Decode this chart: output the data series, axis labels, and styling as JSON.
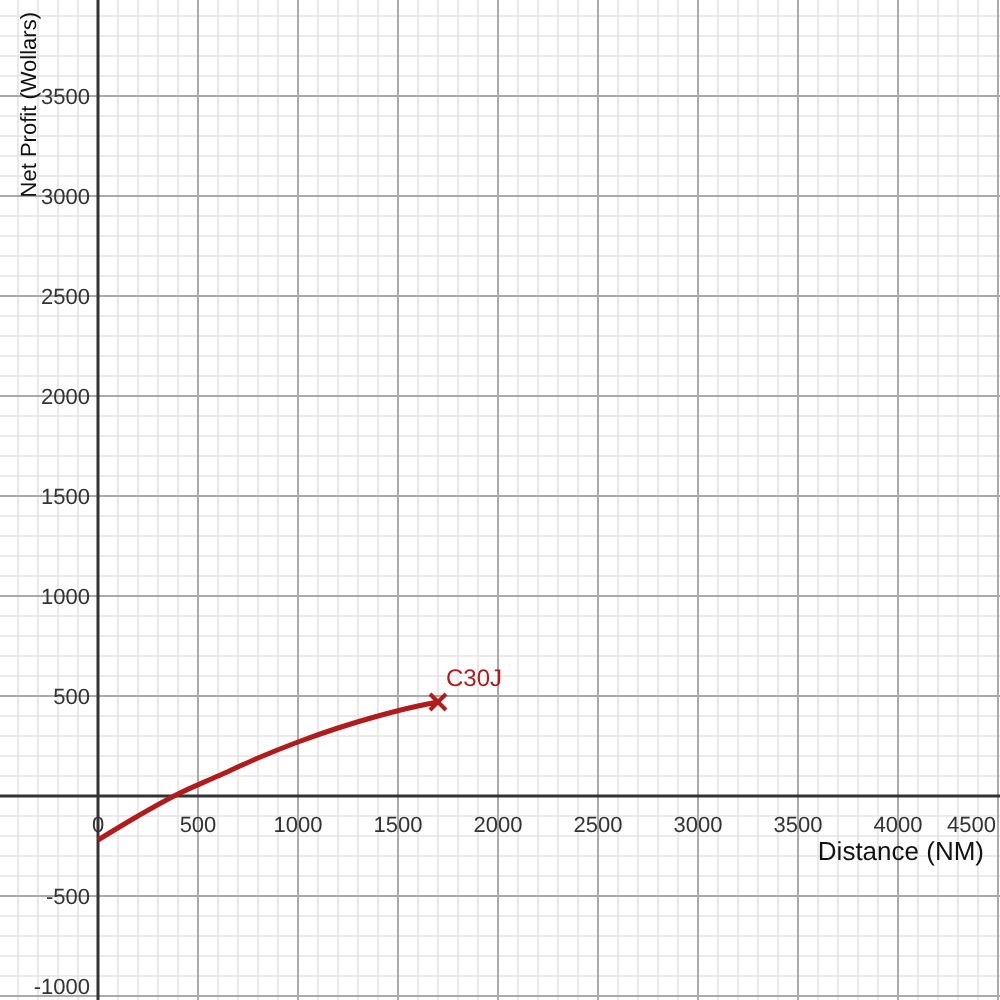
{
  "chart_data": {
    "type": "line",
    "xlabel": "Distance (NM)",
    "ylabel": "Net Profit (Wollars)",
    "xlim": [
      -490,
      4510
    ],
    "ylim": [
      -1020,
      3980
    ],
    "xticks": [
      0,
      500,
      1000,
      1500,
      2000,
      2500,
      3000,
      3500,
      4000,
      4500
    ],
    "yticks": [
      -1000,
      -500,
      {
        "value": 0,
        "label": null
      },
      500,
      1000,
      1500,
      2000,
      2500,
      3000,
      3500
    ],
    "grid": true,
    "x": [
      0,
      200,
      400,
      600,
      800,
      1000,
      1200,
      1400,
      1600,
      1700
    ],
    "series": [
      {
        "name": "C30J",
        "color": "#b01c1c",
        "values": [
          -220,
          -100,
          10,
          100,
          190,
          270,
          340,
          400,
          450,
          470
        ]
      },
      {
        "type": "scatter",
        "marker": "cross",
        "color": "#b01c1c",
        "x": [
          1700
        ],
        "values": [
          470
        ]
      }
    ]
  }
}
